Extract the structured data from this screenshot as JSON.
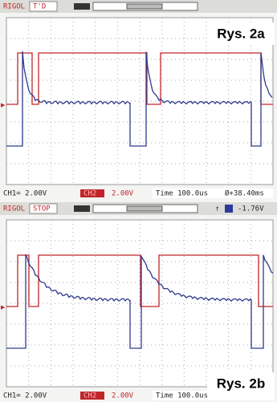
{
  "panels": [
    {
      "header": {
        "brand": "RIGOL",
        "status": "T'D"
      },
      "label": "Rys. 2a",
      "footer": {
        "ch1": "CH1= 2.00V",
        "ch2_name": "CH2",
        "ch2": "2.00V",
        "time": "Time 100.0us",
        "offset": "Ø+38.40ms"
      }
    },
    {
      "header": {
        "brand": "RIGOL",
        "status": "STOP",
        "trigger_level": "-1.76V"
      },
      "label": "Rys. 2b",
      "footer": {
        "ch1": "CH1= 2.00V",
        "ch2_name": "CH2",
        "ch2": "2.00V",
        "time": "Time 100.0us"
      }
    }
  ]
}
